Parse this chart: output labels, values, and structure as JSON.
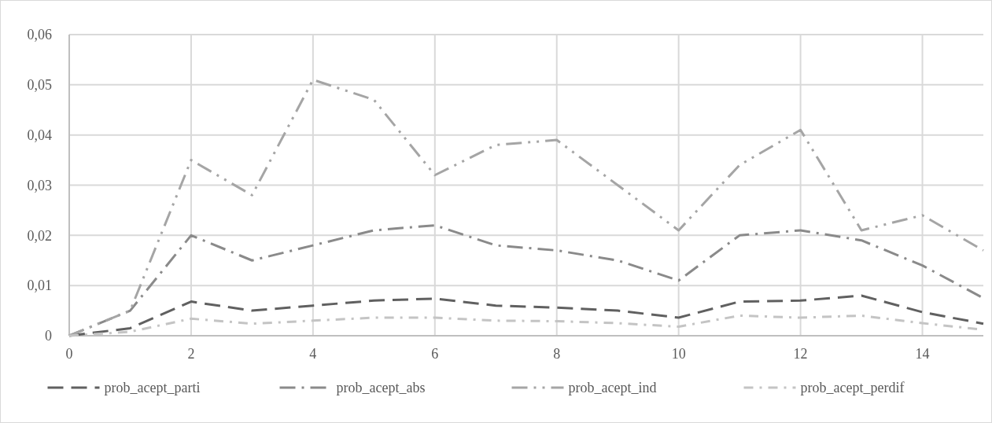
{
  "chart_data": {
    "type": "line",
    "x": [
      0,
      1,
      2,
      3,
      4,
      5,
      6,
      7,
      8,
      9,
      10,
      11,
      12,
      13,
      14,
      15
    ],
    "series": [
      {
        "name": "prob_acept_parti",
        "color": "#606060",
        "values": [
          0,
          0.0015,
          0.0068,
          0.005,
          0.006,
          0.007,
          0.0074,
          0.006,
          0.0056,
          0.005,
          0.0036,
          0.0068,
          0.007,
          0.008,
          0.0047,
          0.0024
        ]
      },
      {
        "name": "prob_acept_abs",
        "color": "#8a8a8a",
        "values": [
          0,
          0.005,
          0.02,
          0.015,
          0.018,
          0.021,
          0.022,
          0.018,
          0.017,
          0.015,
          0.011,
          0.02,
          0.021,
          0.019,
          0.014,
          0.0075
        ]
      },
      {
        "name": "prob_acept_ind",
        "color": "#a5a5a5",
        "values": [
          0,
          0.005,
          0.035,
          0.028,
          0.051,
          0.047,
          0.032,
          0.038,
          0.039,
          0.03,
          0.021,
          0.034,
          0.041,
          0.021,
          0.024,
          0.017
        ]
      },
      {
        "name": "prob_acept_perdif",
        "color": "#c4c4c4",
        "values": [
          0,
          0.0008,
          0.0034,
          0.0024,
          0.003,
          0.0036,
          0.0036,
          0.003,
          0.0029,
          0.0025,
          0.0018,
          0.004,
          0.0036,
          0.004,
          0.0025,
          0.0012
        ]
      }
    ],
    "xlim": [
      0,
      15
    ],
    "xticks": [
      0,
      2,
      4,
      6,
      8,
      10,
      12,
      14
    ],
    "ylim": [
      0,
      0.06
    ],
    "yticks": [
      0,
      {
        "value": 0.01,
        "label": "0,01"
      },
      {
        "value": 0.02,
        "label": "0,02"
      },
      {
        "value": 0.03,
        "label": "0,03"
      },
      {
        "value": 0.04,
        "label": "0,04"
      },
      {
        "value": 0.05,
        "label": "0,05"
      },
      {
        "value": 0.06,
        "label": "0,06"
      }
    ],
    "grid": true,
    "legend": "bottom",
    "line_style": "dashed",
    "marker": "none"
  }
}
